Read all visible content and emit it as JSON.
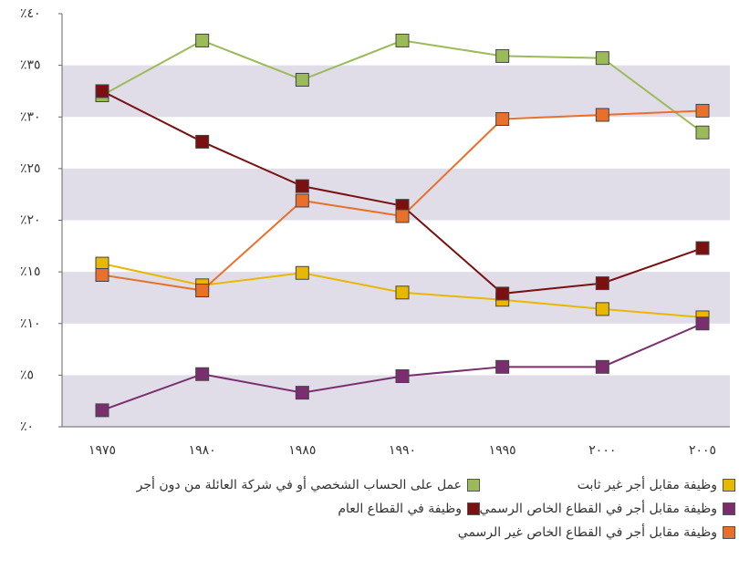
{
  "chart_data": {
    "type": "line",
    "categories": [
      "١٩٧٥",
      "١٩٨٠",
      "١٩٨٥",
      "١٩٩٠",
      "١٩٩٥",
      "٢٠٠٠",
      "٢٠٠٥"
    ],
    "series": [
      {
        "name": "وظيفة مقابل أجر غير ثابت",
        "color": "#e8b800",
        "values": [
          15.8,
          13.7,
          14.9,
          13.0,
          12.3,
          11.4,
          10.6
        ]
      },
      {
        "name": "عمل على الحساب الشخصي أو في شركة العائلة من دون أجر",
        "color": "#9bbb59",
        "values": [
          32.1,
          37.4,
          33.6,
          37.4,
          35.9,
          35.7,
          28.5
        ]
      },
      {
        "name": "وظيفة مقابل أجر في القطاع الخاص الرسمي",
        "color": "#7a2e6e",
        "values": [
          1.6,
          5.1,
          3.3,
          4.9,
          5.8,
          5.8,
          10.0
        ]
      },
      {
        "name": "وظيفة في القطاع العام",
        "color": "#7b1010",
        "values": [
          32.5,
          27.6,
          23.3,
          21.4,
          12.9,
          13.9,
          17.3
        ]
      },
      {
        "name": "وظيفة مقابل أجر في القطاع الخاص غير الرسمي",
        "color": "#e8702a",
        "values": [
          14.7,
          13.2,
          21.9,
          20.4,
          29.8,
          30.2,
          30.6
        ]
      }
    ],
    "ylim": [
      0,
      40
    ],
    "yticks": [
      {
        "value": 0,
        "label": "٪٠"
      },
      {
        "value": 5,
        "label": "٪٥"
      },
      {
        "value": 10,
        "label": "٪١٠"
      },
      {
        "value": 15,
        "label": "٪١٥"
      },
      {
        "value": 20,
        "label": "٪٢٠"
      },
      {
        "value": 25,
        "label": "٪٢٥"
      },
      {
        "value": 30,
        "label": "٪٣٠"
      },
      {
        "value": 35,
        "label": "٪٣٥"
      },
      {
        "value": 40,
        "label": "٪٤٠"
      }
    ],
    "grid": "bands"
  }
}
